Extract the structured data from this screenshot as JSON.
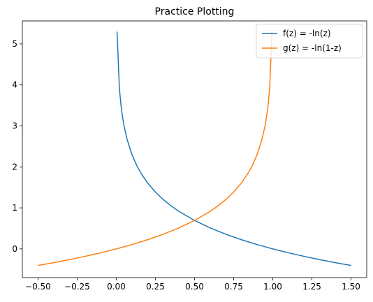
{
  "chart_data": {
    "type": "line",
    "title": "Practice Plotting",
    "xlabel": "",
    "ylabel": "",
    "xlim": [
      -0.6,
      1.6
    ],
    "ylim": [
      -0.7,
      5.56
    ],
    "grid": false,
    "legend_position": "top-right",
    "x_ticks": [
      -0.5,
      -0.25,
      0.0,
      0.25,
      0.5,
      0.75,
      1.0,
      1.25,
      1.5
    ],
    "x_tick_labels": [
      "−0.50",
      "−0.25",
      "0.00",
      "0.25",
      "0.50",
      "0.75",
      "1.00",
      "1.25",
      "1.50"
    ],
    "y_ticks": [
      0,
      1,
      2,
      3,
      4,
      5
    ],
    "y_tick_labels": [
      "0",
      "1",
      "2",
      "3",
      "4",
      "5"
    ],
    "series": [
      {
        "name": "f(z) = -ln(z)",
        "color": "#1f77b4",
        "x": [
          0.005,
          0.02,
          0.03,
          0.04,
          0.05,
          0.07,
          0.1,
          0.13,
          0.16,
          0.2,
          0.25,
          0.3,
          0.35,
          0.4,
          0.5,
          0.6,
          0.7,
          0.8,
          0.9,
          1.0,
          1.1,
          1.2,
          1.3,
          1.4,
          1.5
        ],
        "y": [
          5.298,
          3.912,
          3.507,
          3.219,
          2.996,
          2.659,
          2.303,
          2.04,
          1.833,
          1.609,
          1.386,
          1.204,
          1.05,
          0.916,
          0.693,
          0.511,
          0.357,
          0.223,
          0.105,
          0.0,
          -0.095,
          -0.182,
          -0.262,
          -0.336,
          -0.405
        ]
      },
      {
        "name": "g(z) = -ln(1-z)",
        "color": "#ff7f0e",
        "x": [
          -0.5,
          -0.4,
          -0.3,
          -0.2,
          -0.1,
          0.0,
          0.1,
          0.2,
          0.3,
          0.4,
          0.5,
          0.6,
          0.65,
          0.7,
          0.75,
          0.8,
          0.84,
          0.87,
          0.9,
          0.93,
          0.95,
          0.96,
          0.97,
          0.98,
          0.995
        ],
        "y": [
          -0.405,
          -0.336,
          -0.262,
          -0.182,
          -0.095,
          0.0,
          0.105,
          0.223,
          0.357,
          0.511,
          0.693,
          0.916,
          1.05,
          1.204,
          1.386,
          1.609,
          1.833,
          2.04,
          2.303,
          2.659,
          2.996,
          3.219,
          3.507,
          3.912,
          5.298
        ]
      }
    ]
  }
}
